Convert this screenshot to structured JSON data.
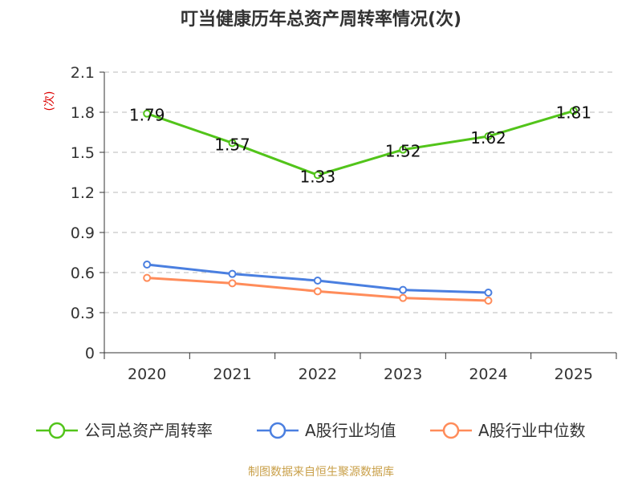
{
  "chart_data": {
    "type": "line",
    "title": "叮当健康历年总资产周转率情况(次)",
    "ylabel": "(次)",
    "xlabel": "",
    "categories": [
      "2020",
      "2021",
      "2022",
      "2023",
      "2024",
      "2025"
    ],
    "ylim": [
      0,
      2.1
    ],
    "yticks": [
      "0",
      "0.3",
      "0.6",
      "0.9",
      "1.2",
      "1.5",
      "1.8",
      "2.1"
    ],
    "grid": true,
    "legend_position": "bottom",
    "series": [
      {
        "name": "公司总资产周转率",
        "color": "#52c41a",
        "values": [
          1.79,
          1.57,
          1.33,
          1.52,
          1.62,
          1.81
        ],
        "labels": [
          "1.79",
          "1.57",
          "1.33",
          "1.52",
          "1.62",
          "1.81"
        ]
      },
      {
        "name": "A股行业均值",
        "color": "#4a7fe0",
        "values": [
          0.66,
          0.59,
          0.54,
          0.47,
          0.45,
          null
        ]
      },
      {
        "name": "A股行业中位数",
        "color": "#ff8c5a",
        "values": [
          0.56,
          0.52,
          0.46,
          0.41,
          0.39,
          null
        ]
      }
    ]
  },
  "source": "制图数据来自恒生聚源数据库"
}
